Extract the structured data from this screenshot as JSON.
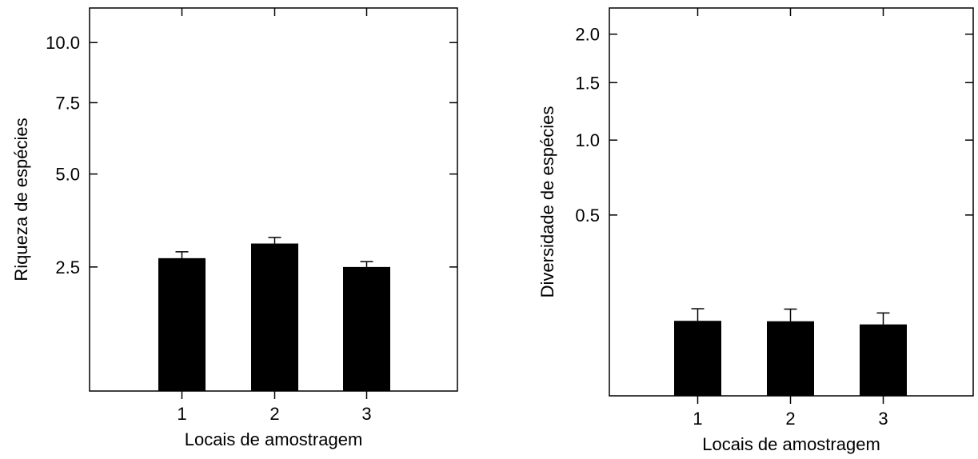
{
  "chart_data": [
    {
      "type": "bar",
      "xlabel": "Locais de amostragem",
      "ylabel": "Riqueza de espécies",
      "y_scale": "sqrt",
      "ylim": [
        0.5,
        11.6
      ],
      "yticks": [
        "2.5",
        "5.0",
        "7.5",
        "10.0"
      ],
      "ytick_values": [
        2.5,
        5.0,
        7.5,
        10.0
      ],
      "categories": [
        "1",
        "2",
        "3"
      ],
      "values": [
        2.7,
        3.05,
        2.5
      ],
      "errors": [
        0.15,
        0.15,
        0.12
      ],
      "bar_color": "#000000",
      "grid": false,
      "legend": "none"
    },
    {
      "type": "bar",
      "xlabel": "Locais de amostragem",
      "ylabel": "Diversidade de espécies",
      "y_scale": "sqrt",
      "ylim": [
        0.0,
        2.3
      ],
      "yticks": [
        "0.5",
        "1.0",
        "1.5",
        "2.0"
      ],
      "ytick_values": [
        0.5,
        1.0,
        1.5,
        2.0
      ],
      "categories": [
        "1",
        "2",
        "3"
      ],
      "values": [
        0.086,
        0.085,
        0.078
      ],
      "errors": [
        0.03,
        0.03,
        0.027
      ],
      "bar_color": "#000000",
      "grid": false,
      "legend": "none"
    }
  ]
}
